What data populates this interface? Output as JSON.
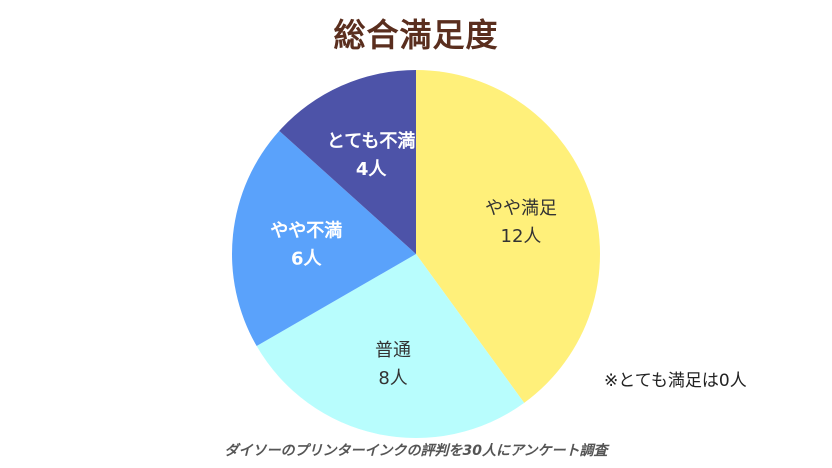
{
  "chart_data": {
    "type": "pie",
    "title": "総合満足度",
    "unit": "人",
    "slices": [
      {
        "label": "やや満足",
        "value": 12,
        "value_text": "12人",
        "color": "#fff07a",
        "text_color": "#333333"
      },
      {
        "label": "普通",
        "value": 8,
        "value_text": "8人",
        "color": "#b8fdfd",
        "text_color": "#333333"
      },
      {
        "label": "やや不満",
        "value": 6,
        "value_text": "6人",
        "color": "#5aa2fb",
        "text_color": "#ffffff"
      },
      {
        "label": "とても不満",
        "value": 4,
        "value_text": "4人",
        "color": "#4d53a8",
        "text_color": "#ffffff"
      }
    ],
    "note": "※とても満足は0人",
    "caption": "ダイソーのプリンターインクの評判を30人にアンケート調査"
  }
}
